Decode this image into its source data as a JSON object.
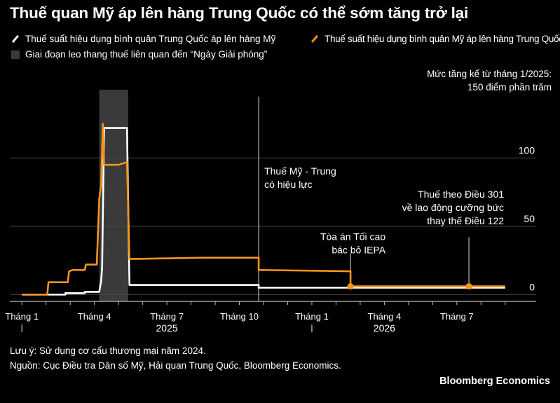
{
  "title": "Thuế quan Mỹ áp lên hàng Trung Quốc có thể sớm tăng trở lại",
  "legend": {
    "white_series": "Thuế suất hiệu dụng bình quân Trung Quốc áp lên hàng Mỹ",
    "orange_series": "Thuế suất hiệu dụng bình quân Mỹ áp lên hàng Trung Quốc",
    "shaded_period": "Giai đoạn leo thang thuế liên quan đến “Ngày Giải phóng”"
  },
  "axis_title": {
    "line1": "Mức tăng kể từ tháng 1/2025:",
    "line2": "150 điểm phần trăm"
  },
  "notes": {
    "note": "Lưu ý: Sử dụng cơ cấu thương mại năm 2024.",
    "source": "Nguồn: Cục Điều tra Dân số Mỹ, Hải quan Trung Quốc, Bloomberg Economics."
  },
  "brand": "Bloomberg Economics",
  "colors": {
    "white": "#ffffff",
    "orange": "#f7941d",
    "shade": "#3a3a3a",
    "grid": "#4a4a4a",
    "background": "#000000"
  },
  "chart_data": {
    "type": "line",
    "title": "Thuế quan Mỹ áp lên hàng Trung Quốc có thể sớm tăng trở lại",
    "x_unit": "months since Jan 2025",
    "xlim": [
      -0.5,
      20.5
    ],
    "ylim": [
      -5,
      150
    ],
    "grid": true,
    "y_ticks": [
      0,
      50,
      100
    ],
    "x_ticks": [
      {
        "x": 0,
        "label": "Tháng 1"
      },
      {
        "x": 3,
        "label": "Tháng 4"
      },
      {
        "x": 6,
        "label": "Tháng 7"
      },
      {
        "x": 9,
        "label": "Tháng 10"
      },
      {
        "x": 12,
        "label": "Tháng 1"
      },
      {
        "x": 15,
        "label": "Tháng 4"
      },
      {
        "x": 18,
        "label": "Tháng 7"
      }
    ],
    "year_labels": [
      {
        "x": 6,
        "label": "2025"
      },
      {
        "x": 15,
        "label": "2026"
      }
    ],
    "year_markers": [
      0,
      12
    ],
    "shaded_span": [
      3.2,
      4.4
    ],
    "series": [
      {
        "name": "Thuế suất hiệu dụng bình quân Trung Quốc áp lên hàng Mỹ",
        "color": "#ffffff",
        "points": [
          [
            0,
            0
          ],
          [
            1.8,
            0
          ],
          [
            1.8,
            1
          ],
          [
            2.6,
            1
          ],
          [
            2.6,
            2
          ],
          [
            3.2,
            2
          ],
          [
            3.28,
            10
          ],
          [
            3.32,
            20
          ],
          [
            3.4,
            122
          ],
          [
            3.5,
            122
          ],
          [
            4.35,
            122
          ],
          [
            4.45,
            7
          ],
          [
            9.8,
            7
          ],
          [
            9.8,
            5
          ],
          [
            20,
            5
          ]
        ]
      },
      {
        "name": "Thuế suất hiệu dụng bình quân Mỹ áp lên hàng Trung Quốc",
        "color": "#f7941d",
        "points": [
          [
            0,
            0
          ],
          [
            1.05,
            0
          ],
          [
            1.1,
            9
          ],
          [
            1.9,
            9
          ],
          [
            1.95,
            17
          ],
          [
            2.1,
            18
          ],
          [
            2.6,
            18
          ],
          [
            2.65,
            22
          ],
          [
            3.1,
            22
          ],
          [
            3.2,
            70
          ],
          [
            3.28,
            80
          ],
          [
            3.35,
            125
          ],
          [
            3.4,
            95
          ],
          [
            4.0,
            95
          ],
          [
            4.35,
            97
          ],
          [
            4.45,
            26
          ],
          [
            7.5,
            27
          ],
          [
            9.8,
            27
          ],
          [
            9.8,
            18
          ],
          [
            13.6,
            17
          ],
          [
            13.6,
            6
          ],
          [
            16,
            6
          ],
          [
            20,
            6
          ]
        ]
      }
    ],
    "highlight_points": [
      [
        13.6,
        6
      ],
      [
        18.5,
        6
      ]
    ],
    "annotations": [
      {
        "x": 9.8,
        "y": 88,
        "text": [
          "Thuế Mỹ - Trung",
          "có hiệu lực"
        ],
        "align": "left",
        "vline": [
          -5,
          145
        ]
      },
      {
        "x": 13.6,
        "y": 40,
        "text": [
          "Tòa án Tối cao",
          "bác bỏ IEPA"
        ],
        "align": "right",
        "vline": [
          6,
          30
        ]
      },
      {
        "x": 18.5,
        "y": 71,
        "text": [
          "Thuế theo Điều 301",
          "về lao động cưỡng bức",
          "thay thế Điều 122"
        ],
        "align": "right",
        "vline": [
          6,
          42
        ]
      }
    ]
  }
}
